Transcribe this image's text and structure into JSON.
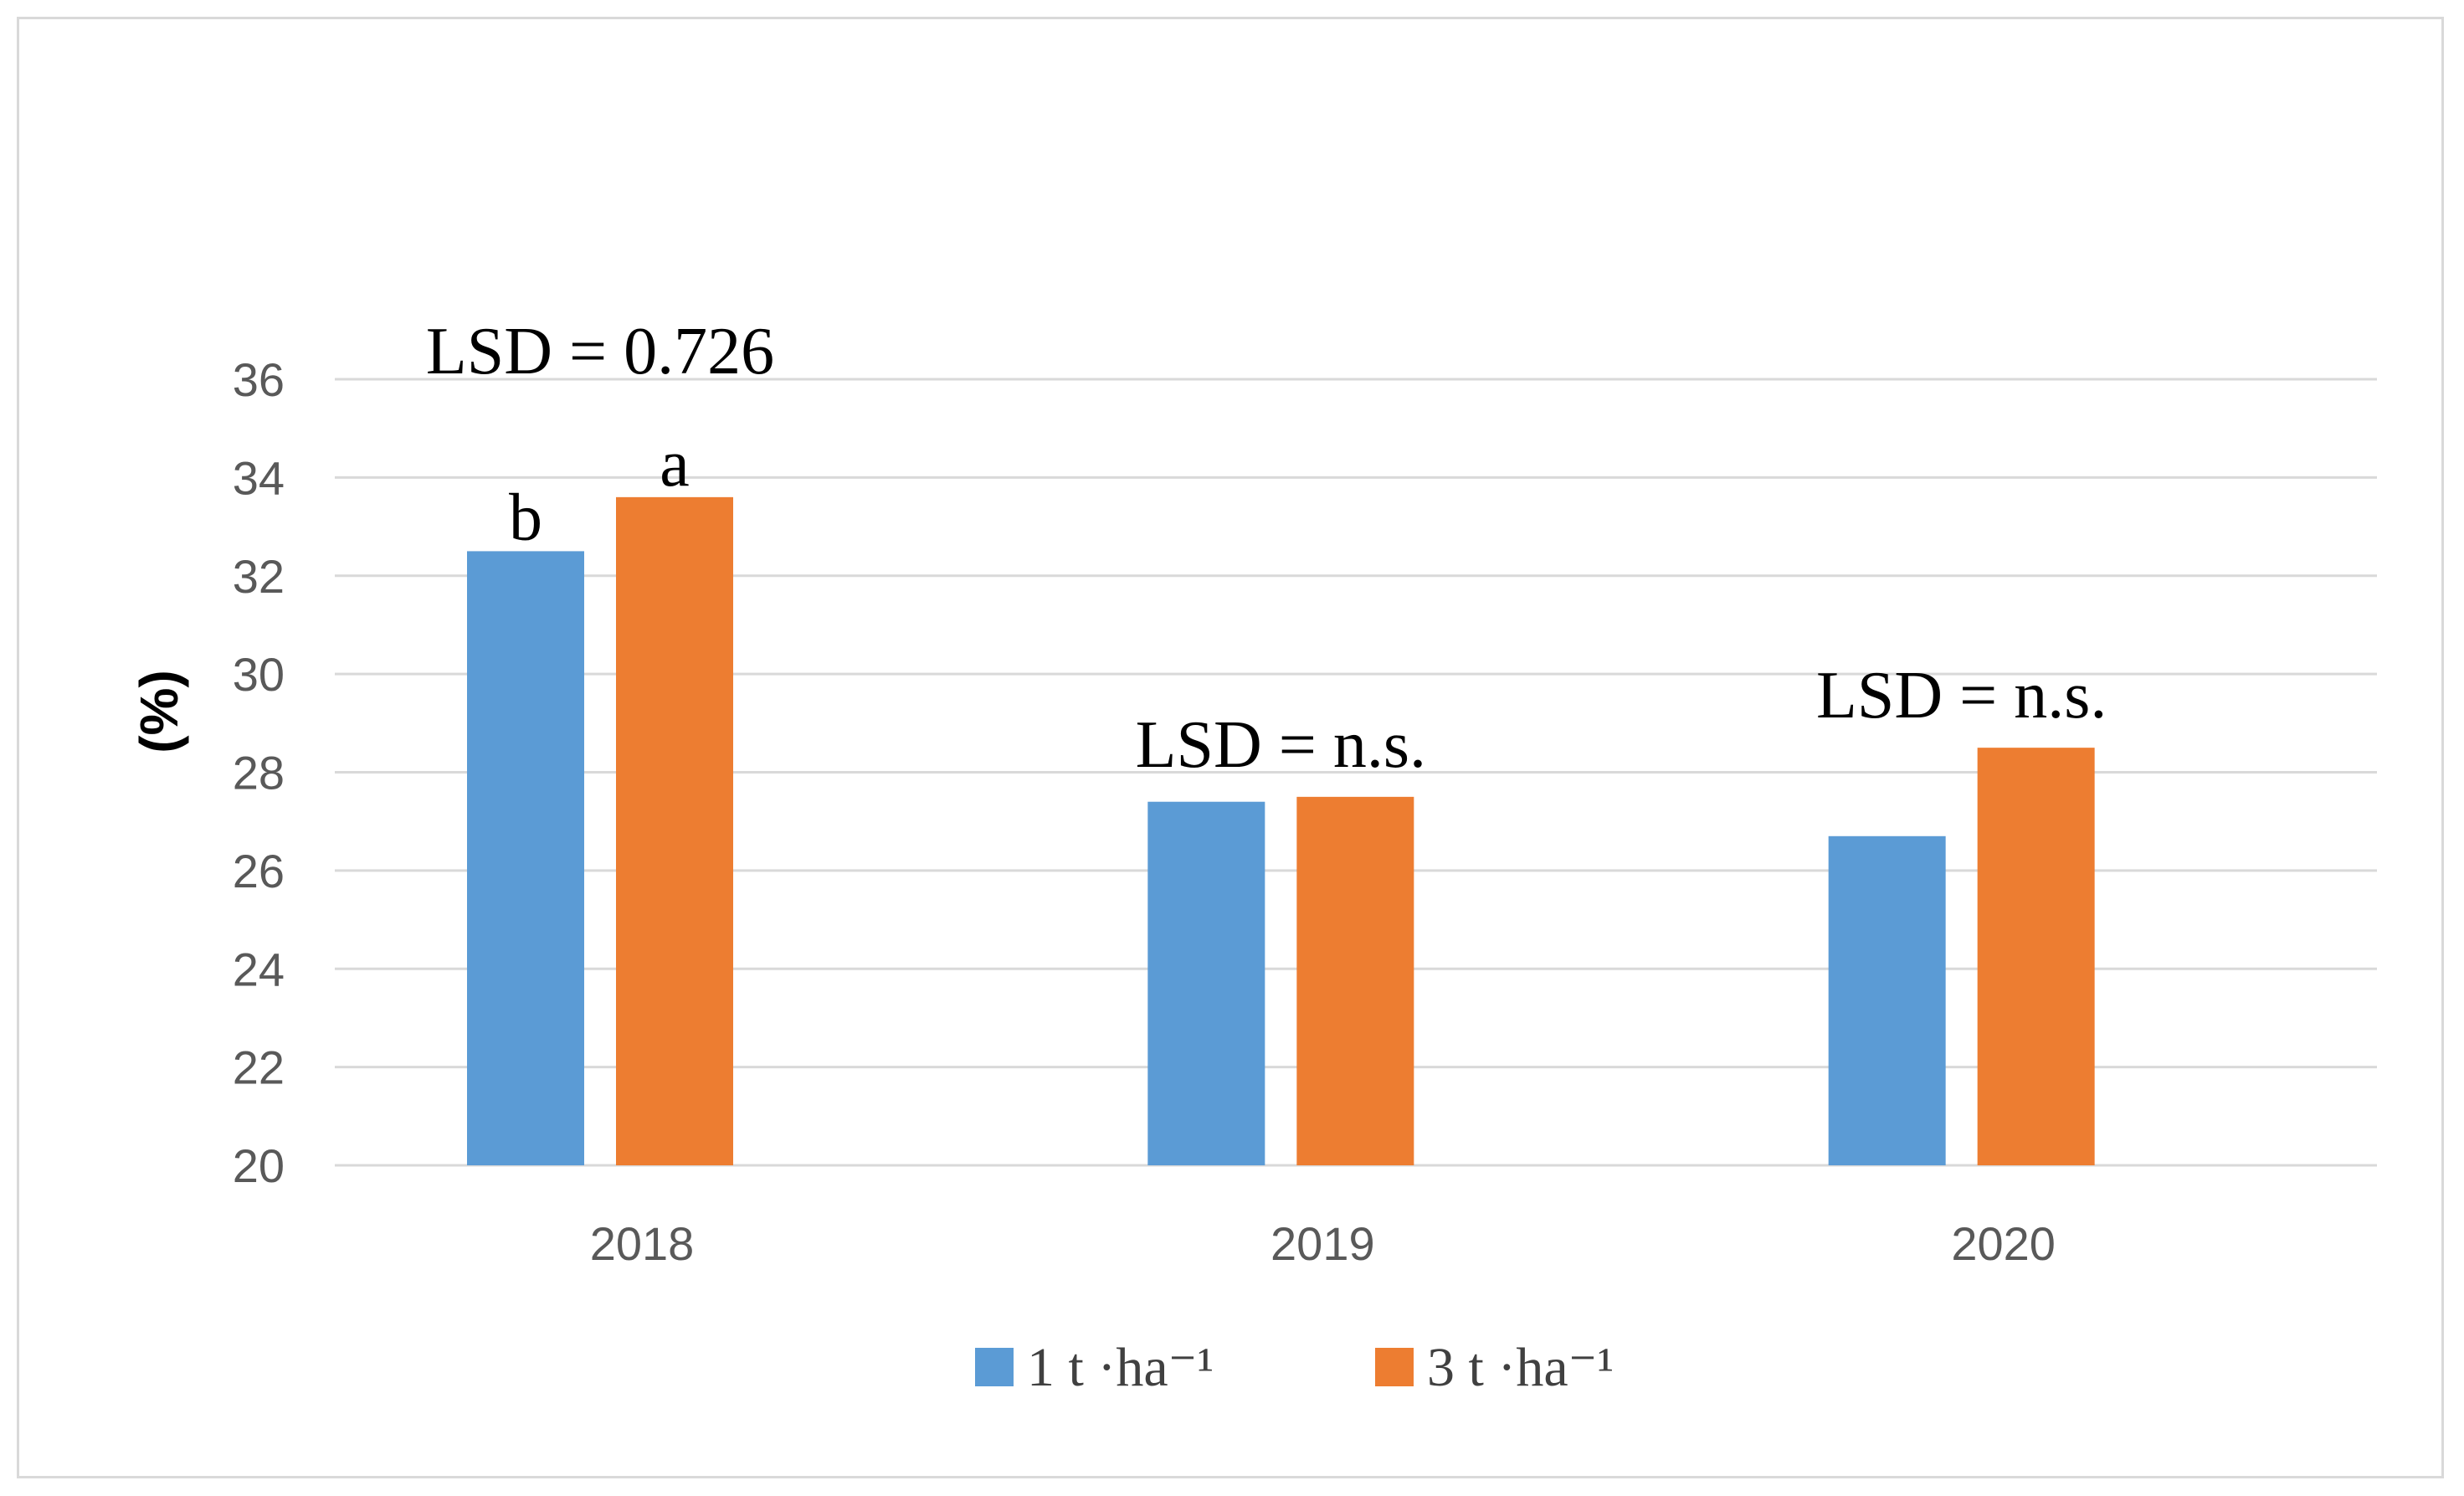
{
  "chart_data": {
    "type": "bar",
    "categories": [
      "2018",
      "2019",
      "2020"
    ],
    "series": [
      {
        "name": "1 t ·ha⁻¹",
        "color": "#5b9bd5",
        "values": [
          32.5,
          27.4,
          26.7
        ]
      },
      {
        "name": "3 t ·ha⁻¹",
        "color": "#ed7d31",
        "values": [
          33.6,
          27.5,
          28.5
        ]
      }
    ],
    "ylabel": "(%)",
    "ylim": [
      20,
      36
    ],
    "yticks": [
      20,
      22,
      24,
      26,
      28,
      30,
      32,
      34,
      36
    ],
    "grid": true,
    "legend_position": "bottom",
    "annotations": {
      "lsd": [
        "LSD = 0.726",
        "LSD = n.s.",
        "LSD = n.s."
      ],
      "letters": [
        [
          "b",
          "a"
        ],
        [
          "",
          ""
        ],
        [
          "",
          ""
        ]
      ]
    }
  }
}
